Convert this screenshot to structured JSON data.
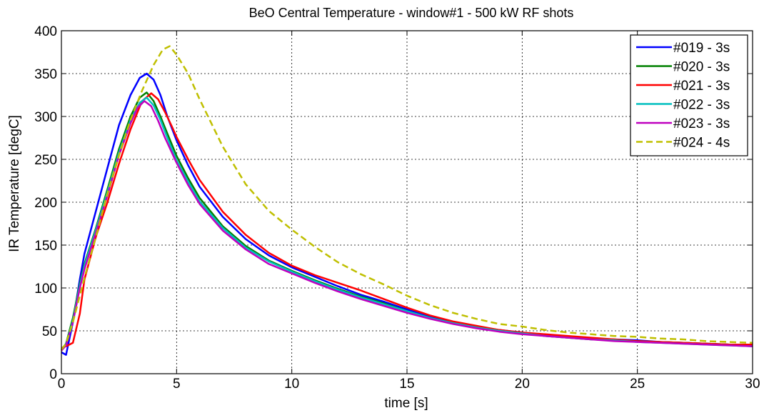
{
  "chart_data": {
    "type": "line",
    "title": "BeO Central Temperature - window#1 - 500 kW RF shots",
    "xlabel": "time [s]",
    "ylabel": "IR Temperature [degC]",
    "xlim": [
      0,
      30
    ],
    "ylim": [
      0,
      400
    ],
    "xticks": [
      "0",
      "5",
      "10",
      "15",
      "20",
      "25",
      "30"
    ],
    "yticks": [
      "0",
      "50",
      "100",
      "150",
      "200",
      "250",
      "300",
      "350",
      "400"
    ],
    "grid": true,
    "legend_position": "top-right",
    "series": [
      {
        "name": "#019 - 3s",
        "color": "#0000ff",
        "dash": false,
        "x": [
          0,
          0.2,
          0.5,
          0.8,
          1.0,
          1.5,
          2.0,
          2.5,
          3.0,
          3.4,
          3.7,
          4.0,
          4.3,
          4.6,
          5.0,
          5.5,
          6.0,
          7.0,
          8.0,
          9.0,
          10.0,
          11.0,
          12.0,
          13.0,
          14.0,
          15.0,
          16.0,
          17.0,
          18.0,
          19.0,
          20.0,
          21.0,
          22.0,
          23.0,
          24.0,
          25.0,
          26.0,
          27.0,
          28.0,
          29.0,
          30.0
        ],
        "y": [
          25,
          22,
          60,
          110,
          140,
          190,
          240,
          290,
          325,
          345,
          350,
          343,
          325,
          300,
          272,
          243,
          218,
          183,
          157,
          138,
          124,
          113,
          102,
          92,
          84,
          75,
          66,
          60,
          55,
          51,
          48,
          45,
          43,
          41,
          40,
          39,
          37,
          36,
          35,
          34,
          32
        ]
      },
      {
        "name": "#020 - 3s",
        "color": "#008000",
        "dash": false,
        "x": [
          0,
          0.2,
          0.5,
          0.8,
          1.0,
          1.5,
          2.0,
          2.5,
          3.0,
          3.4,
          3.7,
          4.0,
          4.3,
          4.6,
          5.0,
          5.5,
          6.0,
          7.0,
          8.0,
          9.0,
          10.0,
          11.0,
          12.0,
          13.0,
          14.0,
          15.0,
          16.0,
          17.0,
          18.0,
          19.0,
          20.0,
          21.0,
          22.0,
          23.0,
          24.0,
          25.0,
          26.0,
          27.0,
          28.0,
          29.0,
          30.0
        ],
        "y": [
          28,
          35,
          65,
          105,
          128,
          170,
          215,
          262,
          300,
          322,
          328,
          318,
          300,
          280,
          254,
          228,
          205,
          172,
          149,
          132,
          120,
          109,
          99,
          90,
          82,
          73,
          65,
          59,
          54,
          50,
          47,
          44,
          42,
          40,
          39,
          38,
          37,
          36,
          35,
          34,
          33
        ]
      },
      {
        "name": "#021 - 3s",
        "color": "#ff0000",
        "dash": false,
        "x": [
          0,
          0.2,
          0.5,
          0.8,
          1.0,
          1.5,
          2.0,
          2.5,
          3.0,
          3.5,
          3.9,
          4.2,
          4.5,
          4.8,
          5.0,
          5.5,
          6.0,
          7.0,
          8.0,
          9.0,
          10.0,
          11.0,
          12.0,
          13.0,
          14.0,
          15.0,
          16.0,
          17.0,
          18.0,
          19.0,
          20.0,
          21.0,
          22.0,
          23.0,
          24.0,
          25.0,
          26.0,
          27.0,
          28.0,
          29.0,
          30.0
        ],
        "y": [
          30,
          32,
          36,
          70,
          110,
          160,
          200,
          245,
          285,
          318,
          327,
          320,
          305,
          288,
          276,
          250,
          226,
          189,
          162,
          141,
          126,
          115,
          106,
          97,
          87,
          77,
          68,
          61,
          56,
          51,
          48,
          46,
          44,
          42,
          40,
          38,
          37,
          36,
          35,
          34,
          34
        ]
      },
      {
        "name": "#022 - 3s",
        "color": "#00bfbf",
        "dash": false,
        "x": [
          0,
          0.2,
          0.5,
          0.8,
          1.0,
          1.5,
          2.0,
          2.5,
          3.0,
          3.4,
          3.7,
          4.0,
          4.3,
          4.6,
          5.0,
          5.5,
          6.0,
          7.0,
          8.0,
          9.0,
          10.0,
          11.0,
          12.0,
          13.0,
          14.0,
          15.0,
          16.0,
          17.0,
          18.0,
          19.0,
          20.0,
          21.0,
          22.0,
          23.0,
          24.0,
          25.0,
          26.0,
          27.0,
          28.0,
          29.0,
          30.0
        ],
        "y": [
          28,
          34,
          62,
          103,
          126,
          168,
          212,
          258,
          296,
          316,
          322,
          313,
          296,
          275,
          249,
          224,
          201,
          170,
          147,
          131,
          119,
          108,
          98,
          89,
          81,
          73,
          65,
          59,
          54,
          50,
          47,
          44,
          42,
          40,
          39,
          37,
          36,
          35,
          34,
          33,
          32
        ]
      },
      {
        "name": "#023 - 3s",
        "color": "#bf00bf",
        "dash": false,
        "x": [
          0,
          0.2,
          0.5,
          0.8,
          1.0,
          1.5,
          2.0,
          2.5,
          3.0,
          3.3,
          3.6,
          3.9,
          4.2,
          4.5,
          5.0,
          5.5,
          6.0,
          7.0,
          8.0,
          9.0,
          10.0,
          11.0,
          12.0,
          13.0,
          14.0,
          15.0,
          16.0,
          17.0,
          18.0,
          19.0,
          20.0,
          21.0,
          22.0,
          23.0,
          24.0,
          25.0,
          26.0,
          27.0,
          28.0,
          29.0,
          30.0
        ],
        "y": [
          27,
          33,
          60,
          100,
          122,
          165,
          208,
          255,
          292,
          310,
          318,
          312,
          295,
          275,
          246,
          220,
          198,
          167,
          145,
          128,
          117,
          106,
          96,
          87,
          79,
          71,
          64,
          58,
          53,
          49,
          46,
          44,
          42,
          40,
          38,
          37,
          36,
          35,
          34,
          33,
          32
        ]
      },
      {
        "name": "#024 - 4s",
        "color": "#bfbf00",
        "dash": true,
        "x": [
          0,
          0.2,
          0.5,
          1.0,
          1.5,
          2.0,
          2.5,
          3.0,
          3.5,
          4.0,
          4.4,
          4.7,
          5.0,
          5.5,
          6.0,
          7.0,
          8.0,
          9.0,
          10.0,
          11.0,
          12.0,
          13.0,
          14.0,
          15.0,
          16.0,
          17.0,
          18.0,
          19.0,
          20.0,
          21.0,
          22.0,
          23.0,
          24.0,
          25.0,
          26.0,
          27.0,
          28.0,
          29.0,
          30.0
        ],
        "y": [
          28,
          35,
          60,
          112,
          160,
          210,
          255,
          296,
          330,
          360,
          378,
          382,
          372,
          350,
          320,
          265,
          221,
          190,
          168,
          148,
          130,
          116,
          104,
          91,
          80,
          71,
          64,
          58,
          55,
          51,
          48,
          46,
          44,
          43,
          41,
          40,
          38,
          37,
          36
        ]
      }
    ]
  }
}
